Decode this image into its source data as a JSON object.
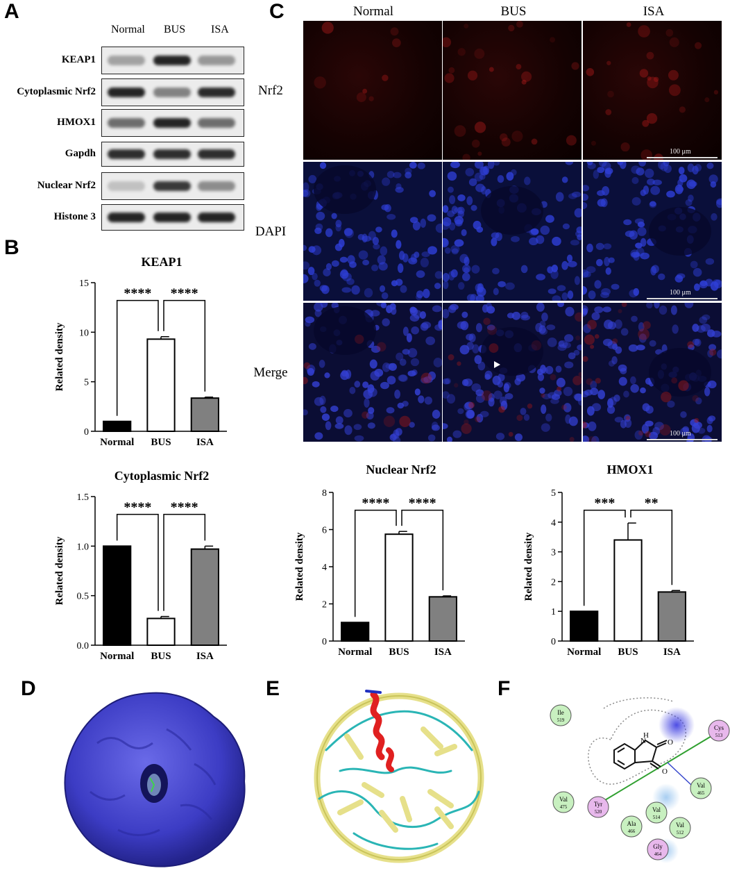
{
  "panels": {
    "A": "A",
    "B": "B",
    "C": "C",
    "D": "D",
    "E": "E",
    "F": "F"
  },
  "western_blot": {
    "columns": [
      "Normal",
      "BUS",
      "ISA"
    ],
    "rows": [
      {
        "label": "KEAP1",
        "intensity": [
          0.35,
          0.95,
          0.4
        ]
      },
      {
        "label": "Cytoplasmic Nrf2",
        "intensity": [
          0.95,
          0.5,
          0.92
        ]
      },
      {
        "label": "HMOX1",
        "intensity": [
          0.6,
          0.95,
          0.6
        ]
      },
      {
        "label": "Gapdh",
        "intensity": [
          0.9,
          0.9,
          0.9
        ]
      },
      {
        "label": "Nuclear Nrf2",
        "intensity": [
          0.2,
          0.85,
          0.45
        ]
      },
      {
        "label": "Histone 3",
        "intensity": [
          0.95,
          0.95,
          0.95
        ]
      }
    ]
  },
  "microscopy": {
    "columns": [
      "Normal",
      "BUS",
      "ISA"
    ],
    "rows": [
      "Nrf2",
      "DAPI",
      "Merge"
    ],
    "scale_label": "100 μm"
  },
  "chart_data": [
    {
      "type": "bar",
      "title": "KEAP1",
      "ylabel": "Related density",
      "categories": [
        "Normal",
        "BUS",
        "ISA"
      ],
      "values": [
        1.0,
        9.3,
        3.35
      ],
      "errors": [
        0,
        0.25,
        0.1
      ],
      "ylim": [
        0,
        15
      ],
      "yticks": [
        "0",
        "5",
        "10",
        "15"
      ],
      "tick_values": [
        0,
        5,
        10,
        15
      ],
      "significance": [
        "****",
        "****"
      ]
    },
    {
      "type": "bar",
      "title": "Cytoplasmic Nrf2",
      "ylabel": "Related density",
      "categories": [
        "Normal",
        "BUS",
        "ISA"
      ],
      "values": [
        1.0,
        0.27,
        0.97
      ],
      "errors": [
        0,
        0.02,
        0.03
      ],
      "ylim": [
        0,
        1.5
      ],
      "yticks": [
        "0.0",
        "0.5",
        "1.0",
        "1.5"
      ],
      "tick_values": [
        0,
        0.5,
        1.0,
        1.5
      ],
      "significance": [
        "****",
        "****"
      ]
    },
    {
      "type": "bar",
      "title": "Nuclear Nrf2",
      "ylabel": "Related density",
      "categories": [
        "Normal",
        "BUS",
        "ISA"
      ],
      "values": [
        1.0,
        5.75,
        2.38
      ],
      "errors": [
        0,
        0.15,
        0.05
      ],
      "ylim": [
        0,
        8
      ],
      "yticks": [
        "0",
        "2",
        "4",
        "6",
        "8"
      ],
      "tick_values": [
        0,
        2,
        4,
        6,
        8
      ],
      "significance": [
        "****",
        "****"
      ]
    },
    {
      "type": "bar",
      "title": "HMOX1",
      "ylabel": "Related density",
      "categories": [
        "Normal",
        "BUS",
        "ISA"
      ],
      "values": [
        1.0,
        3.4,
        1.65
      ],
      "errors": [
        0,
        0.57,
        0.05
      ],
      "ylim": [
        0,
        5
      ],
      "yticks": [
        "0",
        "1",
        "2",
        "3",
        "4",
        "5"
      ],
      "tick_values": [
        0,
        1,
        2,
        3,
        4,
        5
      ],
      "significance": [
        "***",
        "**"
      ]
    }
  ],
  "bar_colors": [
    "#000000",
    "#ffffff",
    "#808080"
  ],
  "interaction": {
    "residues": [
      {
        "name": "Ile",
        "num": "519",
        "color": "#c8f0c0"
      },
      {
        "name": "Cys",
        "num": "513",
        "color": "#e8b8ec"
      },
      {
        "name": "Val",
        "num": "465",
        "color": "#c8f0c0"
      },
      {
        "name": "Val",
        "num": "475",
        "color": "#c8f0c0"
      },
      {
        "name": "Tyr",
        "num": "520",
        "color": "#e8b8ec"
      },
      {
        "name": "Val",
        "num": "514",
        "color": "#c8f0c0"
      },
      {
        "name": "Ala",
        "num": "466",
        "color": "#c8f0c0"
      },
      {
        "name": "Val",
        "num": "512",
        "color": "#c8f0c0"
      },
      {
        "name": "Gly",
        "num": "464",
        "color": "#e8b8ec"
      }
    ],
    "ligand_atoms": {
      "n": "N",
      "h": "H",
      "o1": "O",
      "o2": "O"
    }
  }
}
